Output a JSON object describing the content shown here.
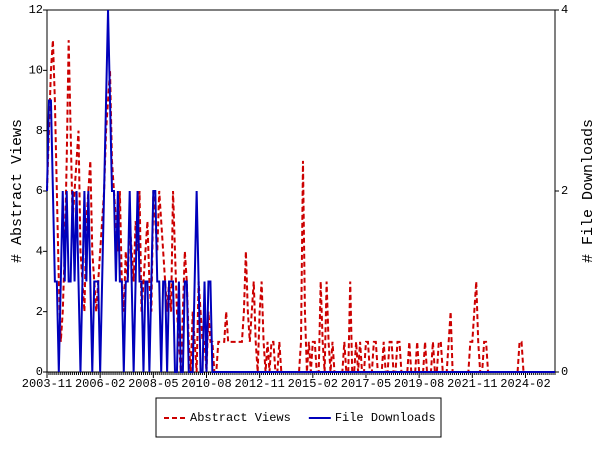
{
  "chart_data": {
    "type": "line",
    "y_label": "# Abstract Views",
    "y2_label": "# File Downloads",
    "x": [
      "2003-11",
      "2003-12",
      "2004-01",
      "2004-02",
      "2004-03",
      "2004-04",
      "2004-05",
      "2004-06",
      "2004-07",
      "2004-08",
      "2004-09",
      "2004-10",
      "2004-11",
      "2004-12",
      "2005-01",
      "2005-02",
      "2005-03",
      "2005-04",
      "2005-05",
      "2005-06",
      "2005-07",
      "2005-08",
      "2005-09",
      "2005-10",
      "2005-11",
      "2005-12",
      "2006-01",
      "2006-02",
      "2006-03",
      "2006-04",
      "2006-05",
      "2006-06",
      "2006-07",
      "2006-08",
      "2006-09",
      "2006-10",
      "2006-11",
      "2006-12",
      "2007-01",
      "2007-02",
      "2007-03",
      "2007-04",
      "2007-05",
      "2007-06",
      "2007-07",
      "2007-08",
      "2007-09",
      "2007-10",
      "2007-11",
      "2007-12",
      "2008-01",
      "2008-02",
      "2008-03",
      "2008-04",
      "2008-05",
      "2008-06",
      "2008-07",
      "2008-08",
      "2008-09",
      "2008-10",
      "2008-11",
      "2008-12",
      "2009-01",
      "2009-02",
      "2009-03",
      "2009-04",
      "2009-05",
      "2009-06",
      "2009-07",
      "2009-08",
      "2009-09",
      "2009-10",
      "2009-11",
      "2009-12",
      "2010-01",
      "2010-02",
      "2010-03",
      "2010-04",
      "2010-05",
      "2010-06",
      "2010-07",
      "2010-08",
      "2010-09",
      "2010-10",
      "2010-11",
      "2010-12",
      "2011-01",
      "2011-02",
      "2011-03",
      "2011-04",
      "2011-05",
      "2011-06",
      "2011-07",
      "2011-08",
      "2011-09",
      "2011-10",
      "2011-11",
      "2011-12",
      "2012-01",
      "2012-02",
      "2012-03",
      "2012-04",
      "2012-05",
      "2012-06",
      "2012-07",
      "2012-08",
      "2012-09",
      "2012-10",
      "2012-11",
      "2012-12",
      "2013-01",
      "2013-02",
      "2013-03",
      "2013-04",
      "2013-05",
      "2013-06",
      "2013-07",
      "2013-08",
      "2013-09",
      "2013-10",
      "2013-11",
      "2013-12",
      "2014-01",
      "2014-02",
      "2014-03",
      "2014-04",
      "2014-05",
      "2014-06",
      "2014-07",
      "2014-08",
      "2014-09",
      "2014-10",
      "2014-11",
      "2014-12",
      "2015-01",
      "2015-02",
      "2015-03",
      "2015-04",
      "2015-05",
      "2015-06",
      "2015-07",
      "2015-08",
      "2015-09",
      "2015-10",
      "2015-11",
      "2015-12",
      "2016-01",
      "2016-02",
      "2016-03",
      "2016-04",
      "2016-05",
      "2016-06",
      "2016-07",
      "2016-08",
      "2016-09",
      "2016-10",
      "2016-11",
      "2016-12",
      "2017-01",
      "2017-02",
      "2017-03",
      "2017-04",
      "2017-05",
      "2017-06",
      "2017-07",
      "2017-08",
      "2017-09",
      "2017-10",
      "2017-11",
      "2017-12",
      "2018-01",
      "2018-02",
      "2018-03",
      "2018-04",
      "2018-05",
      "2018-06",
      "2018-07",
      "2018-08",
      "2018-09",
      "2018-10",
      "2018-11",
      "2018-12",
      "2019-01",
      "2019-02",
      "2019-03",
      "2019-04",
      "2019-05",
      "2019-06",
      "2019-07",
      "2019-08",
      "2019-09",
      "2019-10",
      "2019-11",
      "2019-12",
      "2020-01",
      "2020-02",
      "2020-03",
      "2020-04",
      "2020-05",
      "2020-06",
      "2020-07",
      "2020-08",
      "2020-09",
      "2020-10",
      "2020-11",
      "2020-12",
      "2021-01",
      "2021-02",
      "2021-03",
      "2021-04",
      "2021-05",
      "2021-06",
      "2021-07",
      "2021-08",
      "2021-09",
      "2021-10",
      "2021-11",
      "2021-12",
      "2022-01",
      "2022-02",
      "2022-03",
      "2022-04",
      "2022-05",
      "2022-06",
      "2022-07",
      "2022-08",
      "2022-09",
      "2022-10",
      "2022-11",
      "2022-12",
      "2023-01",
      "2023-02",
      "2023-03",
      "2023-04",
      "2023-05",
      "2023-06",
      "2023-07",
      "2023-08",
      "2023-09",
      "2023-10",
      "2023-11",
      "2023-12",
      "2024-01",
      "2024-02",
      "2024-03",
      "2024-04",
      "2024-05",
      "2024-06",
      "2024-07",
      "2024-08",
      "2024-09",
      "2024-10",
      "2024-11",
      "2024-12",
      "2025-01",
      "2025-02",
      "2025-03",
      "2025-04",
      "2025-05"
    ],
    "series": [
      {
        "name": "Abstract Views",
        "color": "#cc0000",
        "dashed": true,
        "values": [
          6,
          8,
          10,
          11,
          9,
          6,
          3,
          1,
          2,
          4,
          7,
          11,
          8,
          5,
          6,
          7,
          8,
          4,
          3,
          2,
          5,
          6,
          7,
          4,
          3,
          2,
          3,
          4,
          5,
          6,
          8,
          9,
          10,
          7,
          6,
          5,
          4,
          6,
          3,
          2,
          4,
          3,
          5,
          4,
          3,
          5,
          4,
          6,
          2,
          3,
          4,
          5,
          3,
          2,
          6,
          5,
          4,
          6,
          5,
          4,
          3,
          2,
          3,
          2,
          6,
          4,
          2,
          1,
          0,
          2,
          4,
          3,
          1,
          0,
          2,
          1,
          0,
          3,
          2,
          1,
          1,
          0,
          2,
          1,
          1,
          0,
          0,
          1,
          1,
          1,
          1,
          2,
          1,
          1,
          1,
          1,
          1,
          1,
          1,
          1,
          2,
          4,
          2,
          1,
          2,
          3,
          1,
          0,
          2,
          3,
          1,
          0,
          1,
          0,
          1,
          1,
          0,
          0,
          1,
          0,
          0,
          0,
          0,
          0,
          0,
          0,
          0,
          0,
          0,
          1,
          7,
          2,
          0,
          1,
          0,
          1,
          1,
          0,
          0,
          3,
          1,
          0,
          3,
          1,
          0,
          1,
          0,
          0,
          0,
          0,
          0,
          1,
          0,
          0,
          3,
          0,
          0,
          1,
          0,
          1,
          0,
          0,
          1,
          1,
          0,
          0,
          1,
          1,
          0,
          0,
          0,
          1,
          0,
          0,
          1,
          1,
          0,
          0,
          1,
          1,
          0,
          0,
          0,
          0,
          1,
          0,
          0,
          0,
          1,
          0,
          0,
          0,
          1,
          0,
          0,
          0,
          1,
          0,
          0,
          1,
          1,
          0,
          0,
          0,
          1,
          2,
          0,
          0,
          0,
          0,
          0,
          0,
          0,
          0,
          0,
          1,
          1,
          2,
          3,
          1,
          0,
          0,
          1,
          1,
          0,
          0,
          0,
          0,
          0,
          0,
          0,
          0,
          0,
          0,
          0,
          0,
          0,
          0,
          0,
          0,
          1,
          1,
          0,
          0,
          0,
          0,
          0,
          0,
          0,
          0,
          0,
          0,
          0,
          0,
          0,
          0,
          0,
          0,
          0
        ]
      },
      {
        "name": "File Downloads",
        "color": "#0000bb",
        "dashed": false,
        "axis": "y2",
        "values": [
          2,
          3,
          3,
          2,
          1,
          1,
          0,
          1,
          2,
          1,
          2,
          1,
          1,
          2,
          1,
          2,
          1,
          0,
          1,
          2,
          1,
          2,
          1,
          0,
          1,
          1,
          1,
          0,
          1,
          2,
          3,
          4,
          3,
          2,
          2,
          1,
          2,
          1,
          1,
          0,
          1,
          1,
          2,
          1,
          0,
          1,
          2,
          1,
          1,
          0,
          1,
          1,
          0,
          1,
          2,
          2,
          1,
          1,
          0,
          1,
          1,
          0,
          1,
          1,
          1,
          0,
          0,
          1,
          0,
          0,
          1,
          1,
          0,
          0,
          0,
          1,
          2,
          1,
          0,
          0,
          1,
          0,
          1,
          1,
          0,
          0,
          0,
          0,
          0,
          0,
          0,
          0,
          0,
          0,
          0,
          0,
          0,
          0,
          0,
          0,
          0,
          0,
          0,
          0,
          0,
          0,
          0,
          0,
          0,
          0,
          0,
          0,
          0,
          0,
          0,
          0,
          0,
          0,
          0,
          0,
          0,
          0,
          0,
          0,
          0,
          0,
          0,
          0,
          0,
          0,
          0,
          0,
          0,
          0,
          0,
          0,
          0,
          0,
          0,
          0,
          0,
          0,
          0,
          0,
          0,
          0,
          0,
          0,
          0,
          0,
          0,
          0,
          0,
          0,
          0,
          0,
          0,
          0,
          0,
          0,
          0,
          0,
          0,
          0,
          0,
          0,
          0,
          0,
          0,
          0,
          0,
          0,
          0,
          0,
          0,
          0,
          0,
          0,
          0,
          0,
          0,
          0,
          0,
          0,
          0,
          0,
          0,
          0,
          0,
          0,
          0,
          0,
          0,
          0,
          0,
          0,
          0,
          0,
          0,
          0,
          0,
          0,
          0,
          0,
          0,
          0,
          0,
          0,
          0,
          0,
          0,
          0,
          0,
          0,
          0,
          0,
          0,
          0,
          0,
          0,
          0,
          0,
          0,
          0,
          0,
          0,
          0,
          0,
          0,
          0,
          0,
          0,
          0,
          0,
          0,
          0,
          0,
          0,
          0,
          0,
          0,
          0,
          0,
          0,
          0,
          0,
          0,
          0,
          0,
          0,
          0,
          0,
          0,
          0,
          0,
          0,
          0,
          0,
          0
        ]
      }
    ],
    "xlim": [
      "2003-11",
      "2025-05"
    ],
    "xticks": [
      "2003-11",
      "2006-02",
      "2008-05",
      "2010-08",
      "2012-11",
      "2015-02",
      "2017-05",
      "2019-08",
      "2021-11",
      "2024-02"
    ],
    "ylim": [
      0,
      12
    ],
    "yticks": [
      0,
      2,
      4,
      6,
      8,
      10,
      12
    ],
    "y2lim": [
      0,
      4
    ],
    "y2ticks": [
      0,
      2,
      4
    ],
    "legend": "bottom"
  }
}
